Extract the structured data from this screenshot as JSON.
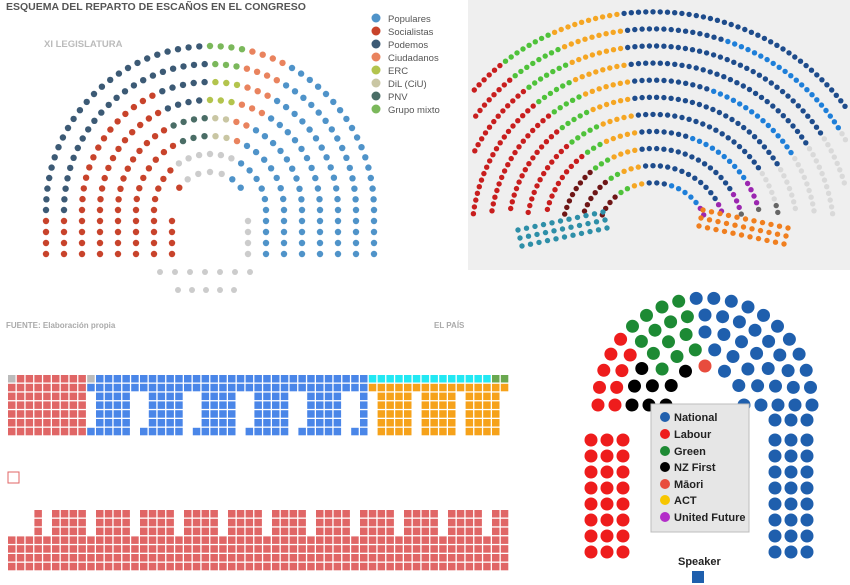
{
  "panel_spain": {
    "title": "ESQUEMA DEL REPARTO DE ESCAÑOS EN EL CONGRESO",
    "subtitle": "XI LEGISLATURA",
    "source": "FUENTE: Elaboración propia",
    "credit": "EL PAÍS",
    "legend": [
      {
        "label": "Populares",
        "color": "#4f93c9"
      },
      {
        "label": "Socialistas",
        "color": "#c8432b"
      },
      {
        "label": "Podemos",
        "color": "#3c5a75"
      },
      {
        "label": "Ciudadanos",
        "color": "#e9835e"
      },
      {
        "label": "ERC",
        "color": "#b3c44d"
      },
      {
        "label": "DiL (CiU)",
        "color": "#c9c6a3"
      },
      {
        "label": "PNV",
        "color": "#4a6d66"
      },
      {
        "label": "Grupo mixto",
        "color": "#7bb85b"
      }
    ]
  },
  "panel_hemicycle": {
    "colors": [
      "#d9d9d9",
      "#c81e1e",
      "#6e1616",
      "#4fc23a",
      "#f5a623",
      "#1e4c8c",
      "#1e7fd9",
      "#666666",
      "#9b27b0",
      "#f07f1f",
      "#2e8fa8"
    ]
  },
  "panel_grid": {
    "colors": {
      "red": "#e06666",
      "blue": "#4a86e8",
      "orange": "#f6a21a",
      "cyan": "#22e8f3",
      "green": "#6aa84f",
      "grey": "#bbbbbb"
    }
  },
  "panel_nz": {
    "legend": [
      {
        "label": "National",
        "color": "#1f5fad"
      },
      {
        "label": "Labour",
        "color": "#ee1c1c"
      },
      {
        "label": "Green",
        "color": "#1d8a34"
      },
      {
        "label": "NZ First",
        "color": "#000000"
      },
      {
        "label": "Māori",
        "color": "#e84c3d"
      },
      {
        "label": "ACT",
        "color": "#f7c600"
      },
      {
        "label": "United Future",
        "color": "#b32dc9"
      }
    ],
    "speaker_label": "Speaker"
  }
}
